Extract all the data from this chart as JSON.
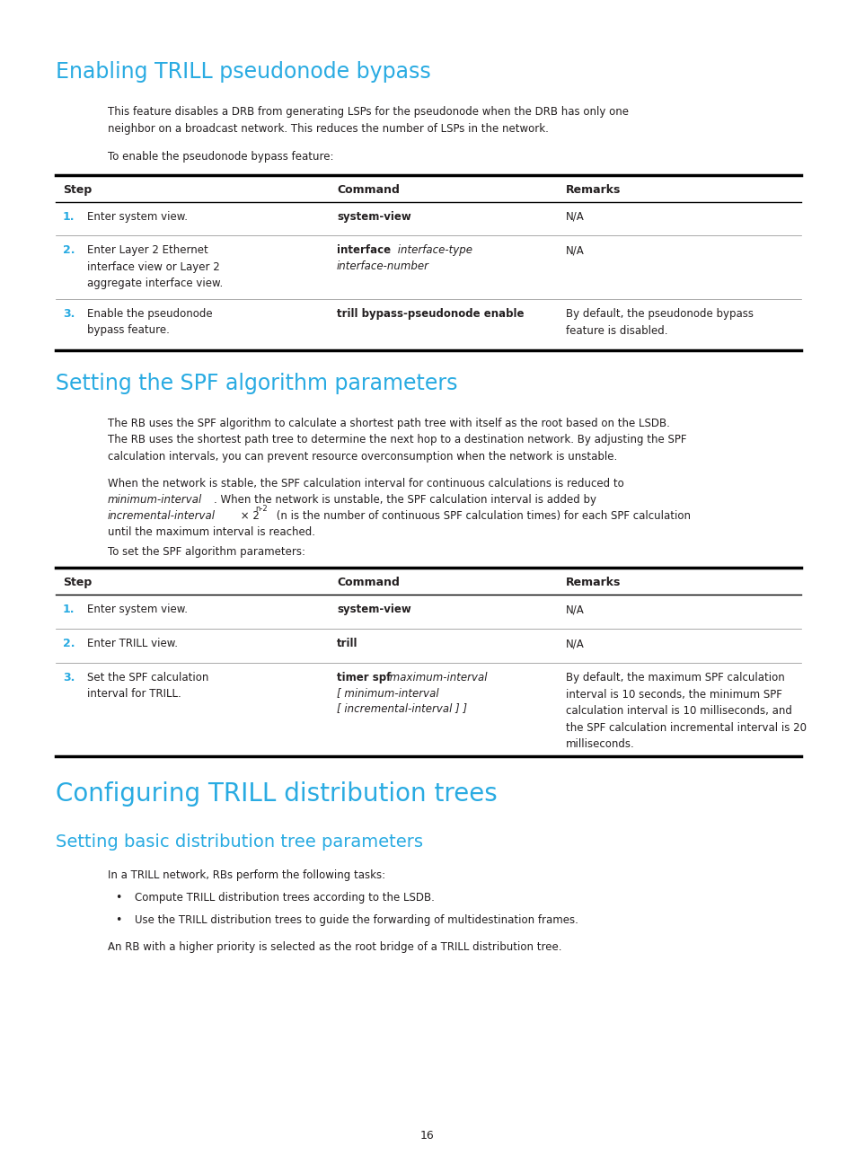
{
  "bg_color": "#ffffff",
  "cyan_color": "#29abe2",
  "text_color": "#231f20",
  "page_number": "16",
  "fig_width": 9.54,
  "fig_height": 12.96,
  "dpi": 100
}
